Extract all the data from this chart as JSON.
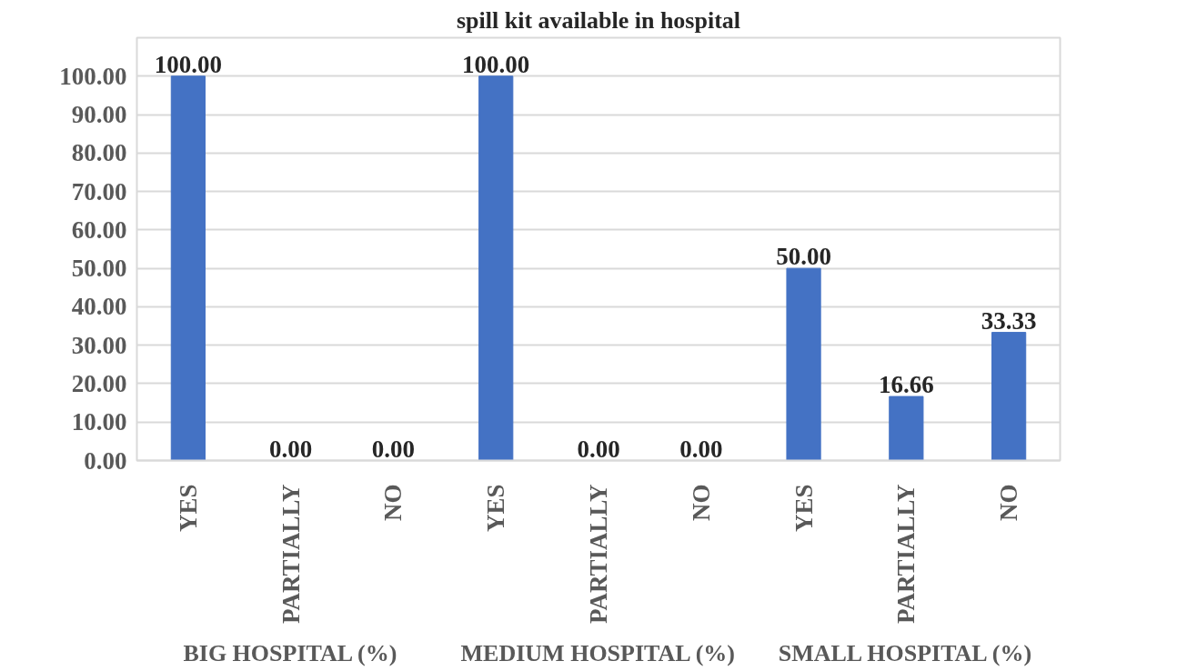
{
  "chart_data": {
    "type": "bar",
    "title": "spill kit available in hospital",
    "categories": [
      "YES",
      "PARTIALLY",
      "NO",
      "YES",
      "PARTIALLY",
      "NO",
      "YES",
      "PARTIALLY",
      "NO"
    ],
    "values": [
      100,
      0,
      0,
      100,
      0,
      0,
      50,
      16.66,
      33.33
    ],
    "value_labels": [
      "100.00",
      "0.00",
      "0.00",
      "100.00",
      "0.00",
      "0.00",
      "50.00",
      "16.66",
      "33.33"
    ],
    "color": "#4472c4",
    "ylim": [
      0,
      110
    ],
    "yticks": [
      {
        "value": 0,
        "label": "0.00"
      },
      {
        "value": 10,
        "label": "10.00"
      },
      {
        "value": 20,
        "label": "20.00"
      },
      {
        "value": 30,
        "label": "30.00"
      },
      {
        "value": 40,
        "label": "40.00"
      },
      {
        "value": 50,
        "label": "50.00"
      },
      {
        "value": 60,
        "label": "60.00"
      },
      {
        "value": 70,
        "label": "70.00"
      },
      {
        "value": 80,
        "label": "80.00"
      },
      {
        "value": 90,
        "label": "90.00"
      },
      {
        "value": 100,
        "label": "100.00"
      }
    ],
    "grid": "y",
    "annotations": [
      "BIG HOSPITAL (%)",
      "MEDIUM HOSPITAL (%)",
      "SMALL HOSPITAL (%)"
    ]
  }
}
